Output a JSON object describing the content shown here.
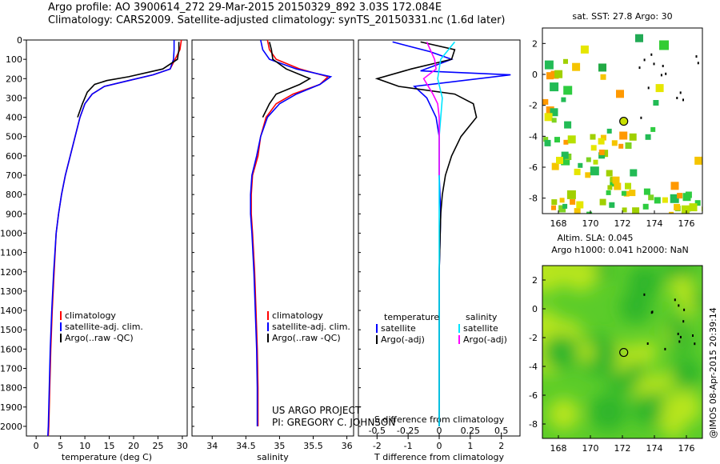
{
  "header": {
    "line1": "Argo profile: AO 3900614_272 29-Mar-2015 20150329_892 3.03S 172.084E",
    "line2": "Climatology: CARS2009. Satellite-adjusted climatology: synTS_20150331.nc (1.6d later)"
  },
  "credits": {
    "project": "US ARGO PROJECT",
    "pi": "PI: GREGORY C. JOHNSON",
    "imos": "@IMOS 08-Apr-2015 20:39:14"
  },
  "colors": {
    "climatology": "#ff0000",
    "satellite": "#0000ff",
    "argo": "#000000",
    "salinity_satellite": "#00e5ff",
    "salinity_argo": "#ff00ff"
  },
  "chart_data": [
    {
      "type": "line",
      "xlabel": "temperature (deg C)",
      "ylabel": "",
      "xlim": [
        -2,
        31
      ],
      "ylim": [
        2050,
        0
      ],
      "x_ticks": [
        0,
        5,
        10,
        15,
        20,
        25,
        30
      ],
      "y_ticks": [
        0,
        100,
        200,
        300,
        400,
        500,
        600,
        700,
        800,
        900,
        1000,
        1100,
        1200,
        1300,
        1400,
        1500,
        1600,
        1700,
        1800,
        1900,
        2000
      ],
      "legend": [
        "climatology",
        "satellite-adj. clim.",
        "Argo(..raw -QC)"
      ],
      "legend_position": "lower-center",
      "series": [
        {
          "name": "climatology",
          "color": "#ff0000",
          "x": [
            29.8,
            29.5,
            28.5,
            27.5,
            24,
            19,
            14,
            11.5,
            10,
            9,
            8,
            7,
            6,
            5.2,
            4.6,
            4.1,
            3.7,
            3.3,
            3.0,
            2.8,
            2.6,
            2.5
          ],
          "y": [
            0,
            50,
            100,
            150,
            180,
            210,
            240,
            280,
            330,
            400,
            500,
            600,
            700,
            800,
            900,
            1000,
            1200,
            1400,
            1600,
            1800,
            2000,
            2050
          ]
        },
        {
          "name": "satellite-adj. clim.",
          "color": "#0000ff",
          "x": [
            28.3,
            28.3,
            28.2,
            27.5,
            24,
            19,
            14,
            11.5,
            10,
            9,
            8,
            7,
            6,
            5.2,
            4.6,
            4.1,
            3.6,
            3.2,
            2.9,
            2.7,
            2.5,
            2.4
          ],
          "y": [
            0,
            50,
            100,
            150,
            180,
            210,
            240,
            280,
            330,
            400,
            500,
            600,
            700,
            800,
            900,
            1000,
            1200,
            1400,
            1600,
            1800,
            2000,
            2050
          ]
        },
        {
          "name": "Argo(..raw -QC)",
          "color": "#000000",
          "x": [
            29.3,
            29.3,
            29.0,
            26,
            19,
            14.5,
            12,
            10.5,
            9.5,
            8.5
          ],
          "y": [
            10,
            50,
            100,
            150,
            190,
            210,
            230,
            270,
            330,
            400
          ]
        }
      ]
    },
    {
      "type": "line",
      "xlabel": "salinity",
      "xlim": [
        33.7,
        36.1
      ],
      "ylim": [
        2050,
        0
      ],
      "x_ticks": [
        34,
        34.5,
        35,
        35.5,
        36
      ],
      "legend": [
        "climatology",
        "satellite-adj. clim.",
        "Argo(..raw -QC)"
      ],
      "legend_position": "lower-center",
      "series": [
        {
          "name": "climatology",
          "color": "#ff0000",
          "x": [
            34.82,
            34.85,
            34.95,
            35.3,
            35.72,
            35.6,
            35.2,
            34.95,
            34.8,
            34.72,
            34.68,
            34.6,
            34.58,
            34.58,
            34.6,
            34.63,
            34.65,
            34.67,
            34.68,
            34.68
          ],
          "y": [
            0,
            50,
            100,
            150,
            190,
            230,
            280,
            330,
            400,
            500,
            600,
            700,
            800,
            900,
            1000,
            1200,
            1400,
            1600,
            1800,
            2000
          ]
        },
        {
          "name": "satellite-adj. clim.",
          "color": "#0000ff",
          "x": [
            34.72,
            34.75,
            34.85,
            35.25,
            35.76,
            35.6,
            35.25,
            35.0,
            34.82,
            34.72,
            34.66,
            34.59,
            34.57,
            34.57,
            34.59,
            34.62,
            34.64,
            34.66,
            34.67,
            34.67
          ],
          "y": [
            0,
            50,
            100,
            150,
            190,
            230,
            280,
            330,
            400,
            500,
            600,
            700,
            800,
            900,
            1000,
            1200,
            1400,
            1600,
            1800,
            2000
          ]
        },
        {
          "name": "Argo(..raw -QC)",
          "color": "#000000",
          "x": [
            34.85,
            34.88,
            34.9,
            35.1,
            35.45,
            35.3,
            34.95,
            34.85,
            34.75
          ],
          "y": [
            10,
            50,
            100,
            150,
            200,
            230,
            280,
            330,
            400
          ]
        }
      ]
    },
    {
      "type": "line",
      "xlabel": "T difference from climatology",
      "x2label": "S difference from climatology",
      "xlim": [
        -2.6,
        2.6
      ],
      "ylim": [
        2050,
        0
      ],
      "x_ticks": [
        -2,
        -1,
        0,
        1,
        2
      ],
      "x2_ticks": [
        -0.5,
        -0.25,
        0,
        0.25,
        0.5
      ],
      "legend_headers": [
        "temperature",
        "salinity"
      ],
      "legend": [
        "satellite",
        "Argo(-adj)",
        "satellite",
        "Argo(-adj)"
      ],
      "legend_position": "lower-center",
      "series": [
        {
          "name": "satellite",
          "color": "#0000ff",
          "x": [
            -1.5,
            -0.3,
            0.4,
            -0.6,
            2.3,
            -0.8,
            -0.4,
            -0.1,
            0.0,
            0.0,
            0.05,
            0.0,
            0.0,
            0.0,
            0.0
          ],
          "y": [
            10,
            60,
            100,
            160,
            180,
            240,
            300,
            400,
            500,
            700,
            900,
            1200,
            1500,
            1800,
            2000
          ]
        },
        {
          "name": "Argo(-adj)",
          "color": "#000000",
          "x": [
            -0.6,
            0.5,
            0.4,
            -0.9,
            -2.0,
            -1.3,
            0.5,
            1.1,
            1.2,
            0.7,
            0.4,
            0.2,
            0.1,
            0.05,
            0.0,
            0.0,
            0.0
          ],
          "y": [
            10,
            50,
            100,
            150,
            200,
            240,
            280,
            330,
            400,
            500,
            600,
            700,
            800,
            900,
            1200,
            1600,
            2000
          ]
        },
        {
          "name": "satellite",
          "color": "#00e5ff",
          "x": [
            0.5,
            0.05,
            -0.05,
            0.1,
            0.0,
            0.0,
            0.0,
            0.0,
            0.0
          ],
          "y": [
            10,
            100,
            200,
            300,
            500,
            800,
            1100,
            1500,
            2000
          ]
        },
        {
          "name": "Argo(-adj)",
          "color": "#ff00ff",
          "x": [
            -0.4,
            -0.15,
            -0.1,
            -0.5,
            -0.2,
            -0.05,
            0.0,
            0.0,
            0.0
          ],
          "y": [
            10,
            100,
            150,
            200,
            280,
            330,
            400,
            500,
            700
          ]
        }
      ]
    },
    {
      "type": "heatmap",
      "title": "sat. SST: 27.8 Argo: 30",
      "xlim": [
        167,
        177
      ],
      "ylim": [
        -9,
        3
      ],
      "x_ticks": [
        168,
        170,
        172,
        174,
        176
      ],
      "y_ticks": [
        -8,
        -6,
        -4,
        -2,
        0,
        2
      ],
      "marker": {
        "x": 172.084,
        "y": -3.03
      }
    },
    {
      "type": "heatmap",
      "title": "Altim. SLA: 0.045",
      "subtitle": "Argo h1000: 0.041 h2000: NaN",
      "xlim": [
        167,
        177
      ],
      "ylim": [
        -9,
        3
      ],
      "x_ticks": [
        168,
        170,
        172,
        174,
        176
      ],
      "y_ticks": [
        -8,
        -6,
        -4,
        -2,
        0,
        2
      ],
      "marker": {
        "x": 172.084,
        "y": -3.03
      }
    }
  ]
}
